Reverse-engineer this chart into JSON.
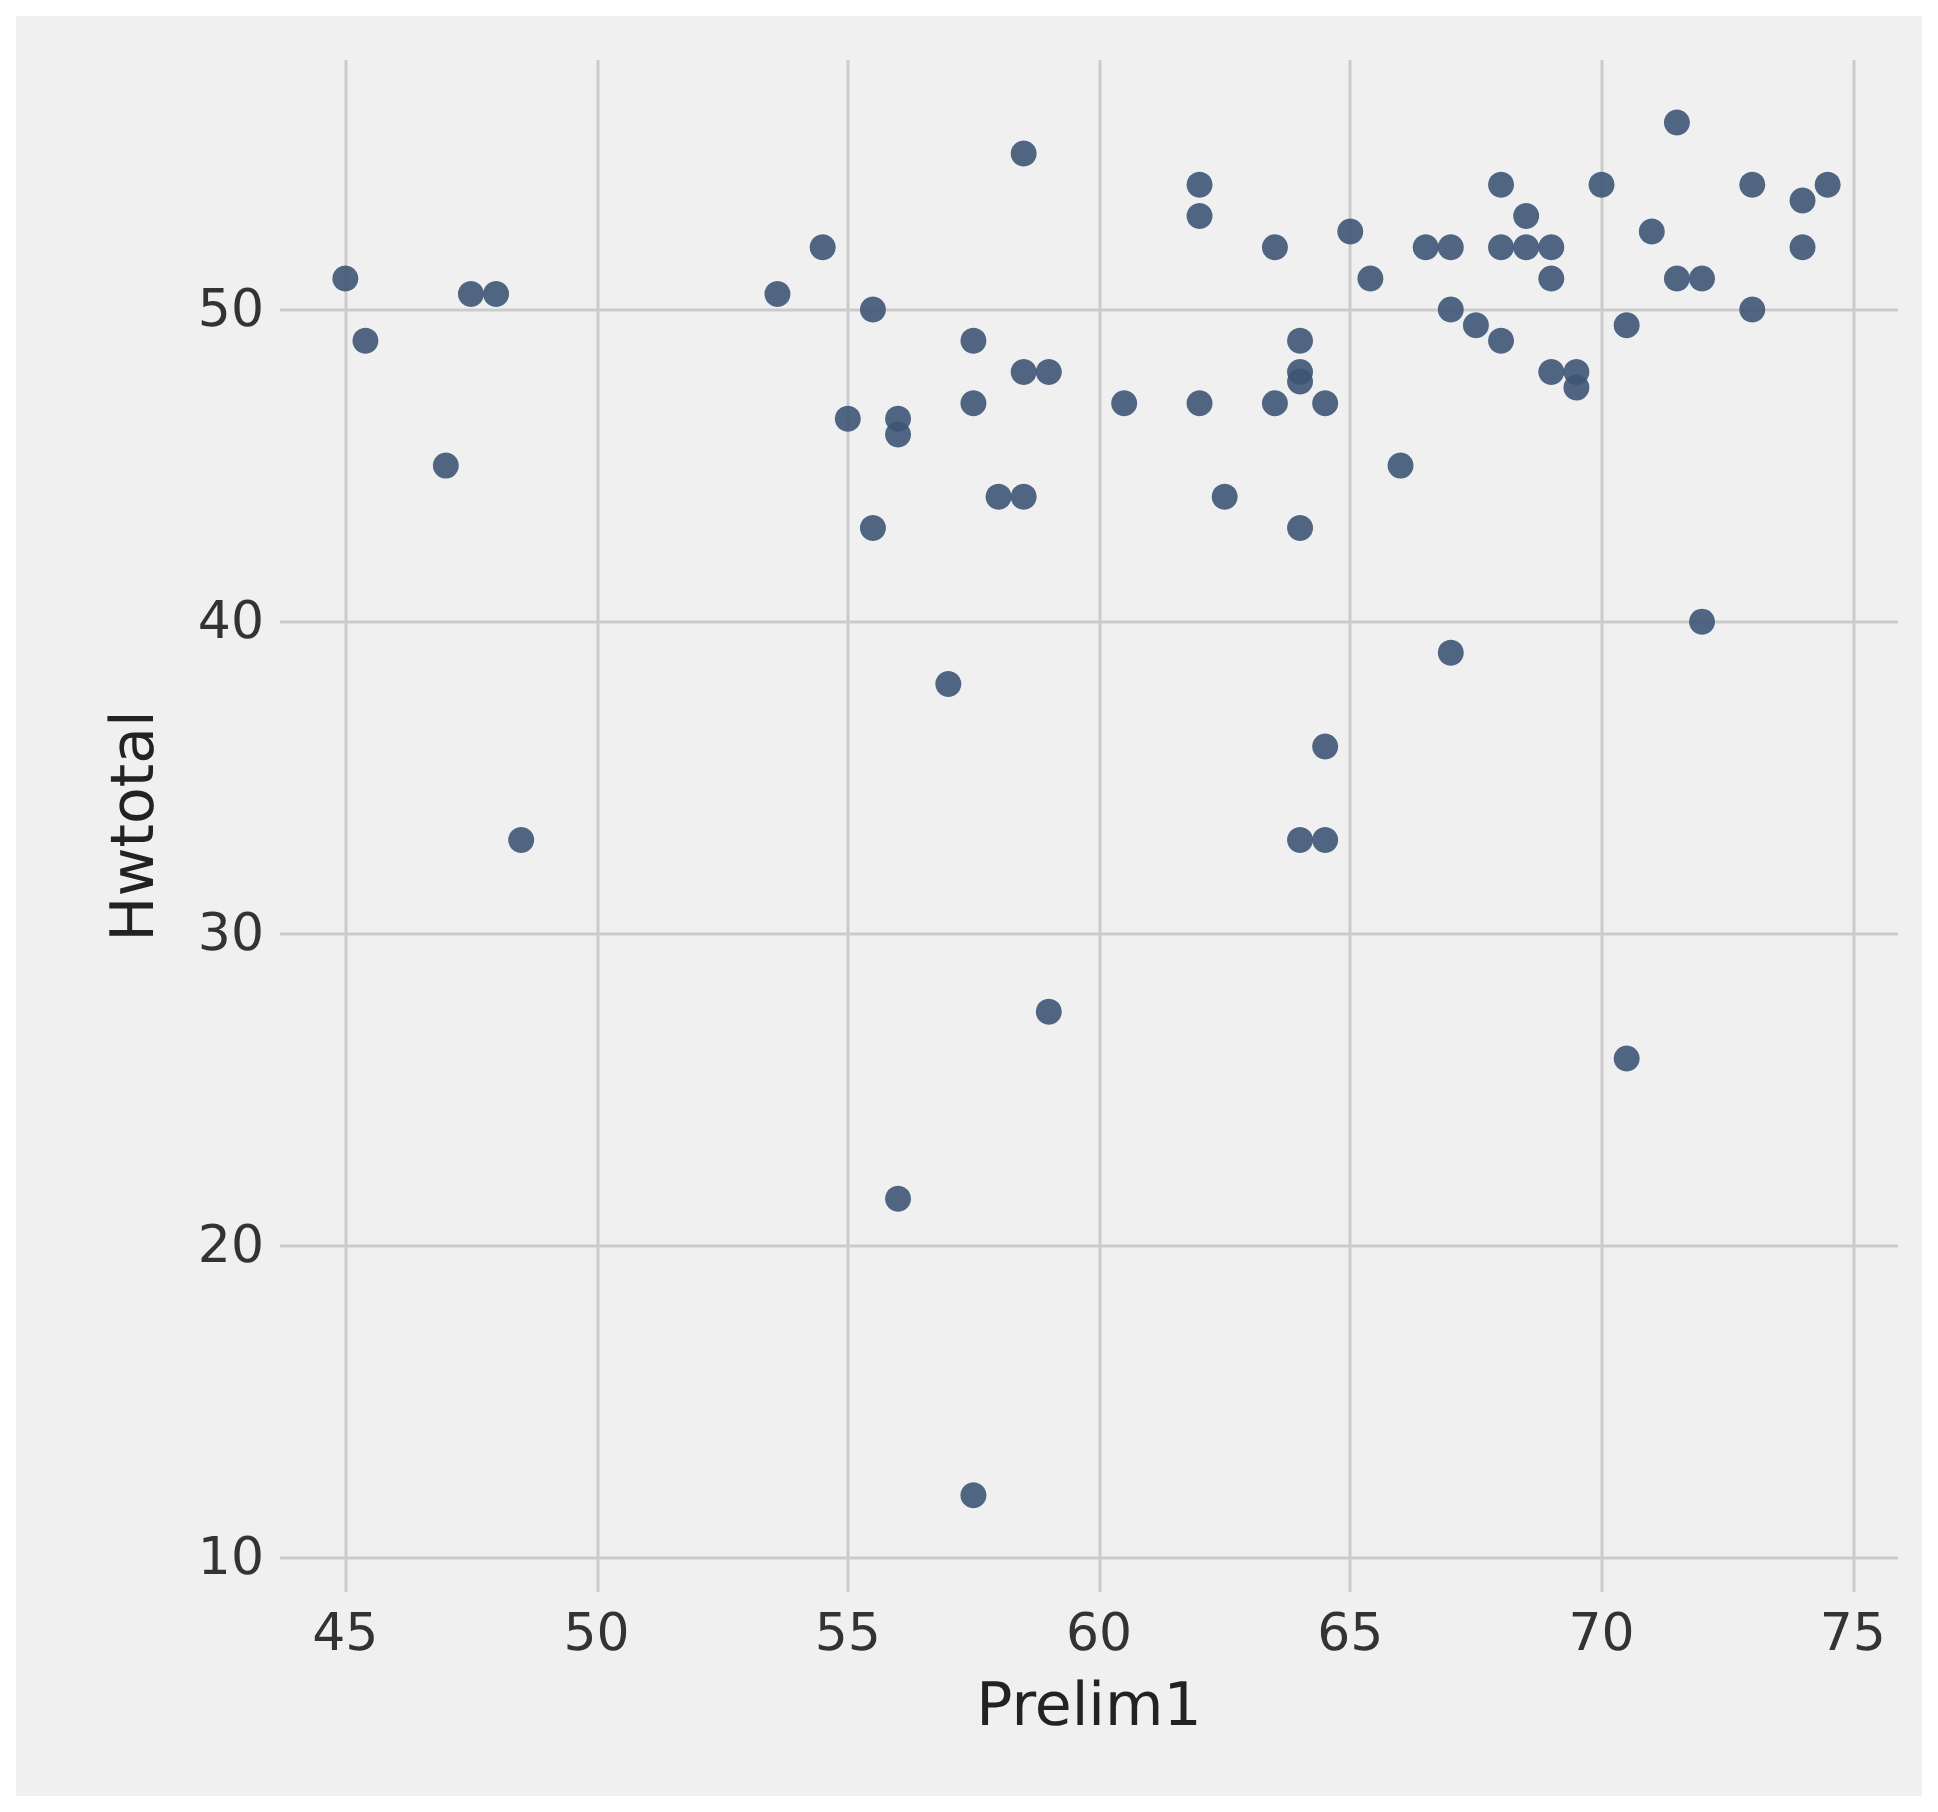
{
  "chart_data": {
    "type": "scatter",
    "xlabel": "Prelim1",
    "ylabel": "Hwtotal",
    "xlim": [
      43.7,
      75.9
    ],
    "ylim": [
      8.9,
      58
    ],
    "xticks": [
      45,
      50,
      55,
      60,
      65,
      70,
      75
    ],
    "yticks": [
      10,
      20,
      30,
      40,
      50
    ],
    "grid": true,
    "marker": "circle",
    "series": [
      {
        "color": "#3d5575",
        "x": [
          45,
          45.4,
          47,
          47.5,
          48,
          48.5,
          53.6,
          54.5,
          55,
          55.5,
          55.5,
          56,
          56,
          56,
          57,
          57.5,
          57.5,
          57.5,
          58,
          58.5,
          58.5,
          58.5,
          59,
          59,
          60.5,
          62,
          62,
          62,
          62.5,
          63.5,
          63.5,
          64,
          64,
          64,
          64,
          64,
          64.5,
          64.5,
          64.5,
          65,
          65.4,
          66,
          66.5,
          67,
          67,
          67,
          67.5,
          68,
          68,
          68,
          68.5,
          68.5,
          69,
          69,
          69,
          69.5,
          69.5,
          70,
          70.5,
          70.5,
          71,
          71.5,
          71.5,
          72,
          72,
          73,
          73,
          74,
          74,
          74.5
        ],
        "values": [
          51,
          49,
          45,
          50.5,
          50.5,
          33,
          50.5,
          52,
          46.5,
          50,
          43,
          46.5,
          46,
          21.5,
          38,
          49,
          47,
          12,
          44,
          44,
          48,
          55,
          48,
          27.5,
          47,
          54,
          53,
          47,
          44,
          52,
          47,
          49,
          48,
          47.7,
          43,
          33,
          47,
          36,
          33,
          52.5,
          51,
          45,
          52,
          52,
          50,
          39,
          49.5,
          54,
          52,
          49,
          53,
          52,
          52,
          51,
          48,
          48,
          47.5,
          54,
          49.5,
          26,
          52.5,
          56,
          51,
          51,
          40,
          54,
          50,
          53.5,
          52,
          54
        ]
      }
    ]
  }
}
